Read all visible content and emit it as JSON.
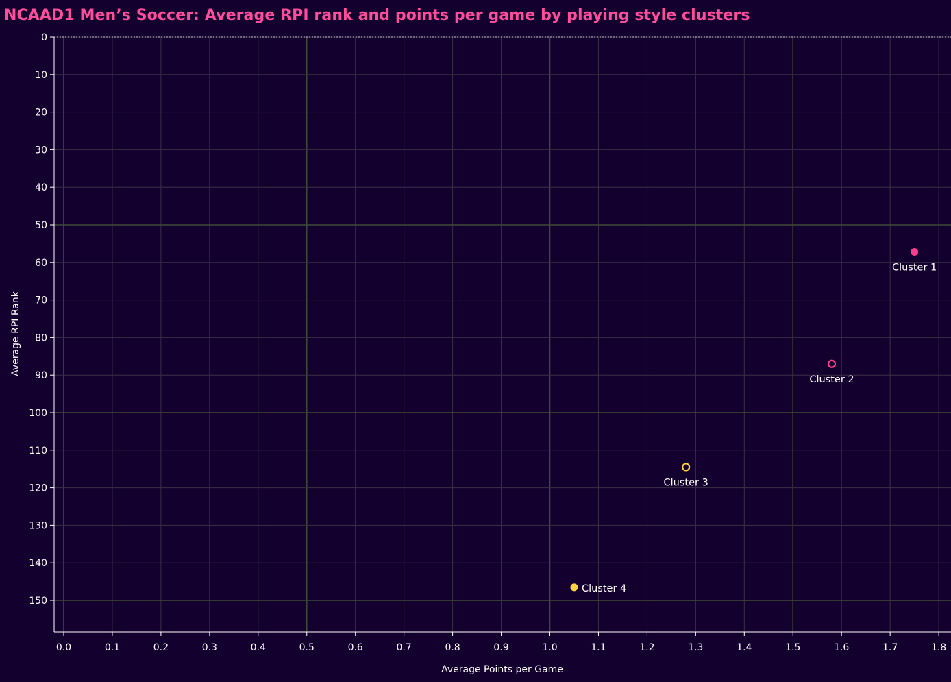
{
  "chart_data": {
    "type": "scatter",
    "title": "NCAAD1 Men’s Soccer: Average RPI rank and points per game by playing style clusters",
    "xlabel": "Average Points per Game",
    "ylabel": "Average RPI Rank",
    "xlim": [
      0.0,
      1.85
    ],
    "ylim": [
      0,
      157
    ],
    "y_reversed": true,
    "grid": true,
    "x_ticks": [
      0.0,
      0.1,
      0.2,
      0.3,
      0.4,
      0.5,
      0.6,
      0.7,
      0.8,
      0.9,
      1.0,
      1.1,
      1.2,
      1.3,
      1.4,
      1.5,
      1.6,
      1.7,
      1.8
    ],
    "x_tick_labels": [
      "0.0",
      "0.1",
      "0.2",
      "0.3",
      "0.4",
      "0.5",
      "0.6",
      "0.7",
      "0.8",
      "0.9",
      "1.0",
      "1.1",
      "1.2",
      "1.3",
      "1.4",
      "1.5",
      "1.6",
      "1.7",
      "1.8"
    ],
    "y_ticks": [
      0,
      10,
      20,
      30,
      40,
      50,
      60,
      70,
      80,
      90,
      100,
      110,
      120,
      130,
      140,
      150
    ],
    "y_tick_labels": [
      "0",
      "10",
      "20",
      "30",
      "40",
      "50",
      "60",
      "70",
      "80",
      "90",
      "100",
      "110",
      "120",
      "130",
      "140",
      "150"
    ],
    "points": [
      {
        "label": "Cluster 1",
        "x": 1.75,
        "y": 57.2,
        "color": "#ff3d8f",
        "filled": true,
        "label_position": "below"
      },
      {
        "label": "Cluster 2",
        "x": 1.58,
        "y": 87.0,
        "color": "#ff3d8f",
        "filled": false,
        "label_position": "below"
      },
      {
        "label": "Cluster 3",
        "x": 1.28,
        "y": 114.5,
        "color": "#ffd23f",
        "filled": false,
        "label_position": "below"
      },
      {
        "label": "Cluster 4",
        "x": 1.05,
        "y": 146.5,
        "color": "#ffd23f",
        "filled": true,
        "label_position": "right"
      }
    ]
  },
  "colors": {
    "background": "#14002e",
    "title": "#ff4d9d",
    "grid_minor": "#3a2f45",
    "grid_major": "#3f4a36",
    "axis": "#ffffff"
  }
}
